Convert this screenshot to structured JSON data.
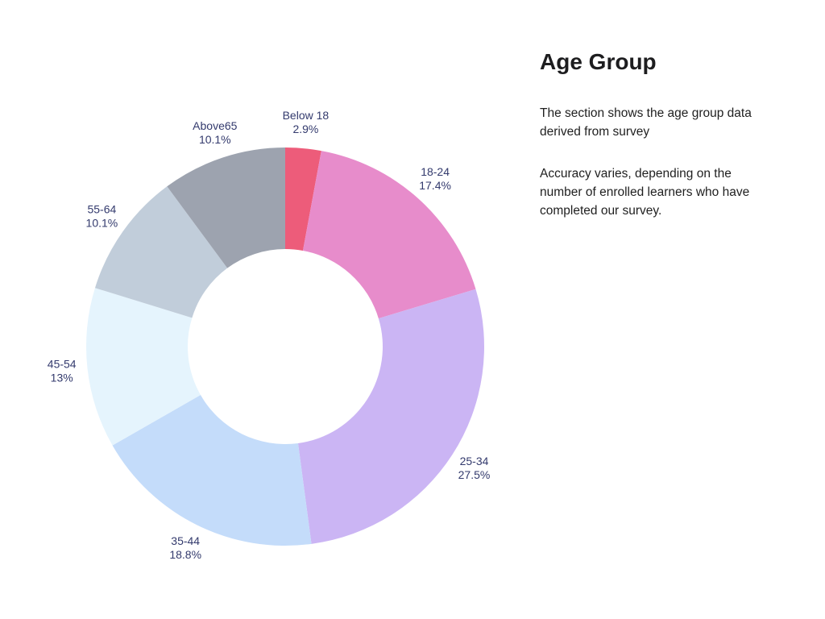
{
  "panel": {
    "title": "Age Group",
    "description_1": "The section shows the age group data derived from survey",
    "description_2": "Accuracy varies, depending on the number of enrolled learners who have completed our survey."
  },
  "chart_data": {
    "type": "pie",
    "subtype": "donut",
    "title": "Age Group",
    "categories": [
      "Below 18",
      "18-24",
      "25-34",
      "35-44",
      "45-54",
      "55-64",
      "Above65"
    ],
    "values": [
      2.9,
      17.4,
      27.5,
      18.8,
      13,
      10.1,
      10.1
    ],
    "value_labels": [
      "2.9%",
      "17.4%",
      "27.5%",
      "18.8%",
      "13%",
      "10.1%",
      "10.1%"
    ],
    "colors": [
      "#ED5C7A",
      "#E78CCB",
      "#CBB5F4",
      "#C4DCFA",
      "#E5F4FD",
      "#C1CDDA",
      "#9DA3AF"
    ],
    "label_color": "#333A6D",
    "start_angle": "top",
    "direction": "clockwise",
    "donut_hole_ratio": 0.49,
    "labels_position": "outside",
    "legend": "none"
  }
}
